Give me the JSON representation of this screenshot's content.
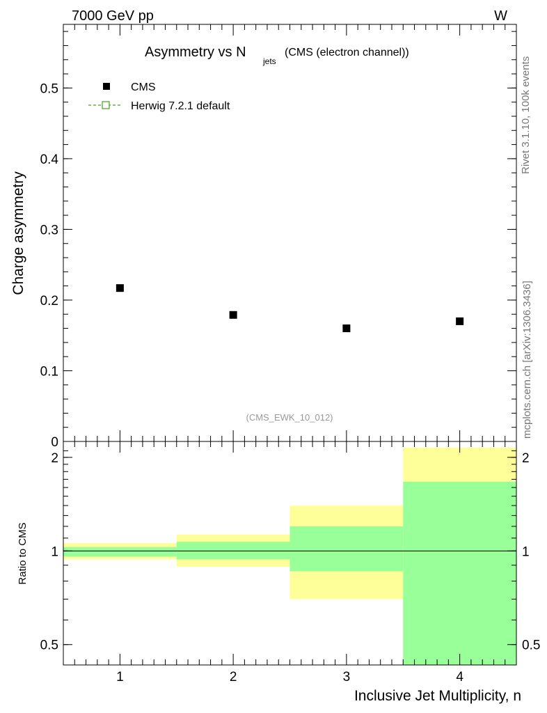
{
  "header": {
    "energy": "7000 GeV pp",
    "process": "W"
  },
  "side_labels": {
    "rivet": "Rivet 3.1.10,  100k events",
    "mcplots": "mcplots.cern.ch [arXiv:1306.3436]"
  },
  "analysis_id": "(CMS_EWK_10_012)",
  "chart_data": [
    {
      "type": "scatter",
      "title_main": "Asymmetry vs N",
      "title_sub": "jets",
      "title_tail": "(CMS (electron channel))",
      "ylabel": "Charge asymmetry",
      "xlim": [
        0.5,
        4.5
      ],
      "ylim": [
        0,
        0.59
      ],
      "yticks": [
        0,
        0.1,
        0.2,
        0.3,
        0.4,
        0.5
      ],
      "ytick_labels": [
        "0",
        "0.1",
        "0.2",
        "0.3",
        "0.4",
        "0.5"
      ],
      "legend_placement": "top-left",
      "series": [
        {
          "name": "CMS",
          "x": [
            1,
            2,
            3,
            4
          ],
          "y": [
            0.217,
            0.179,
            0.16,
            0.17
          ]
        },
        {
          "name": "Herwig 7.2.1 default",
          "x": [],
          "y": []
        }
      ]
    },
    {
      "type": "area",
      "ylabel": "Ratio to CMS",
      "xlabel": "Inclusive Jet Multiplicity, n",
      "xlim": [
        0.5,
        4.5
      ],
      "ylim": [
        0.43,
        2.25
      ],
      "log_y": true,
      "xticks": [
        1,
        2,
        3,
        4
      ],
      "xtick_labels": [
        "1",
        "2",
        "3",
        "4"
      ],
      "yticks": [
        0.5,
        1,
        2
      ],
      "ytick_labels": [
        "0.5",
        "1",
        "2"
      ],
      "reference_line": 1,
      "bins": [
        {
          "x_low": 0.5,
          "x_high": 1.5,
          "stat_low": 0.96,
          "stat_high": 1.03,
          "total_low": 0.94,
          "total_high": 1.06
        },
        {
          "x_low": 1.5,
          "x_high": 2.5,
          "stat_low": 0.94,
          "stat_high": 1.07,
          "total_low": 0.89,
          "total_high": 1.13
        },
        {
          "x_low": 2.5,
          "x_high": 3.5,
          "stat_low": 0.86,
          "stat_high": 1.2,
          "total_low": 0.7,
          "total_high": 1.4
        },
        {
          "x_low": 3.5,
          "x_high": 4.5,
          "stat_low": 0.43,
          "stat_high": 1.67,
          "total_low": 0.43,
          "total_high": 2.15
        }
      ],
      "colors": {
        "stat_band": "#99ff99",
        "total_band": "#ffff99",
        "herwig": "#44a020",
        "data": "#000000"
      }
    }
  ]
}
